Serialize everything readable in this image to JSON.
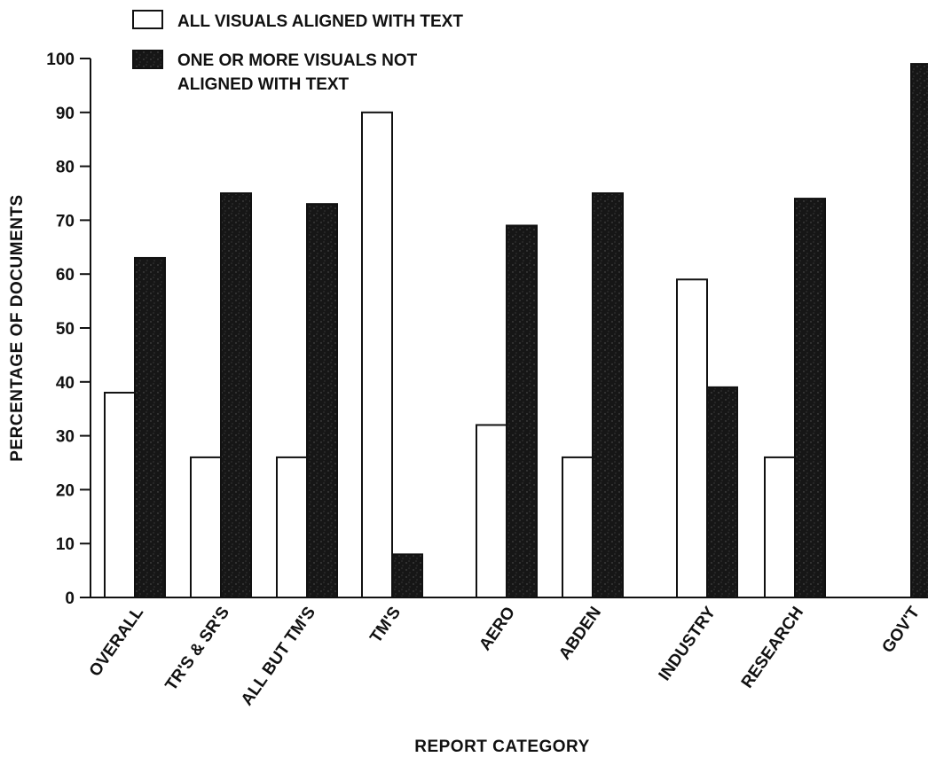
{
  "chart_data": {
    "type": "bar",
    "xlabel": "REPORT CATEGORY",
    "ylabel": "PERCENTAGE OF DOCUMENTS",
    "ylim": [
      0,
      100
    ],
    "yticks": [
      0,
      10,
      20,
      30,
      40,
      50,
      60,
      70,
      80,
      90,
      100
    ],
    "grid": false,
    "legend_position": "top-left",
    "categories": [
      "OVERALL",
      "TR'S & SR'S",
      "ALL BUT TM'S",
      "TM'S",
      "AERO",
      "ABDEN",
      "INDUSTRY",
      "RESEARCH",
      "GOV'T"
    ],
    "series": [
      {
        "name": "ALL VISUALS ALIGNED WITH TEXT",
        "color": "#ffffff",
        "values": [
          38,
          26,
          26,
          90,
          32,
          26,
          59,
          26,
          0
        ]
      },
      {
        "name": "ONE OR MORE VISUALS NOT ALIGNED WITH TEXT",
        "legend_lines": [
          "ONE OR MORE VISUALS NOT",
          "ALIGNED WITH TEXT"
        ],
        "color": "#1a1a1a",
        "values": [
          63,
          75,
          73,
          8,
          69,
          75,
          39,
          74,
          99
        ]
      }
    ]
  }
}
